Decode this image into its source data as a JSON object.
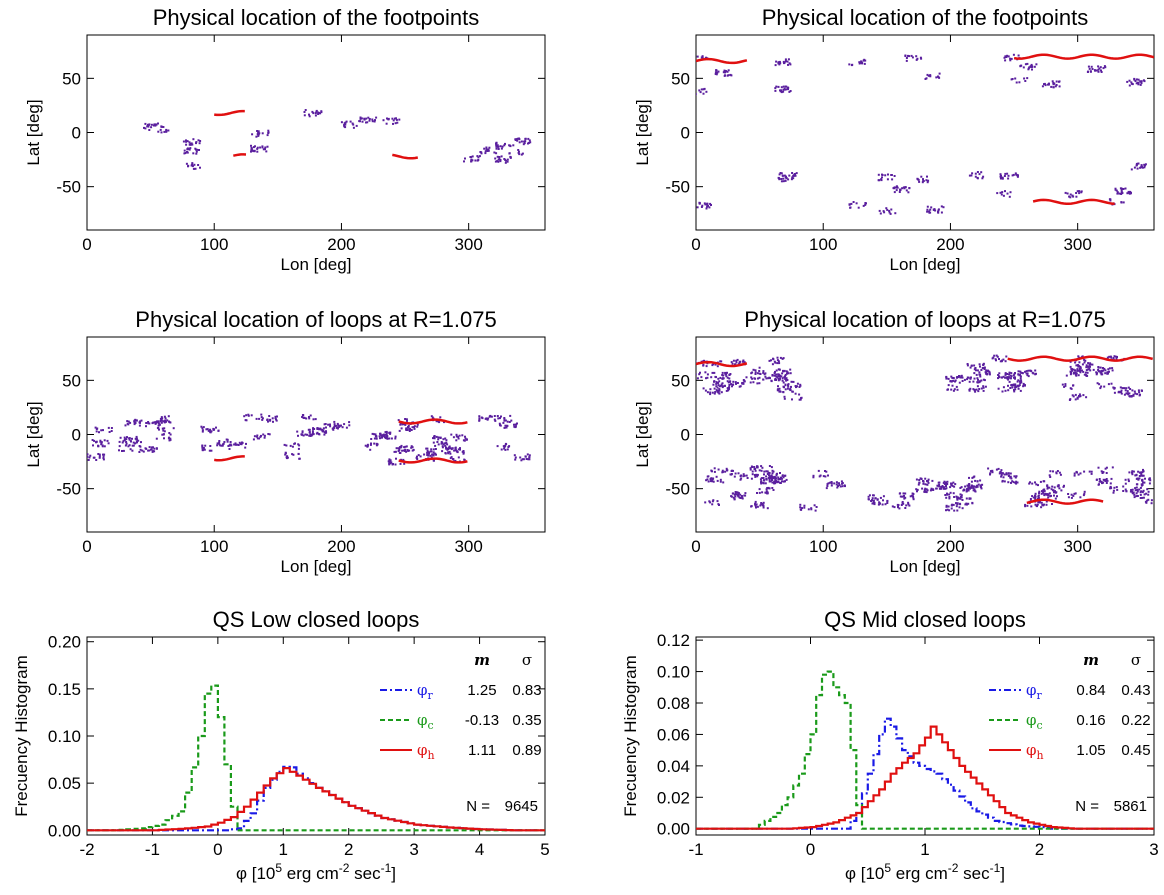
{
  "colors": {
    "footpoint": "#5a1f9e",
    "edge": "#e01010",
    "phi_r": "#1a1ae6",
    "phi_c": "#1a9a1a",
    "phi_h": "#e01010"
  },
  "chart_data": [
    {
      "type": "scatter",
      "title": "Physical location of the footpoints",
      "xlabel": "Lon [deg]",
      "ylabel": "Lat [deg]",
      "xlim": [
        0,
        360
      ],
      "ylim": [
        -90,
        90
      ],
      "xticks": [
        "0",
        "100",
        "200",
        "300"
      ],
      "yticks": [
        "-50",
        "0",
        "50"
      ],
      "regions": [
        {
          "lon": [
            5,
            120
          ],
          "lat": [
            -30,
            15
          ],
          "density": 70
        },
        {
          "lon": [
            120,
            240
          ],
          "lat": [
            -20,
            20
          ],
          "density": 80
        },
        {
          "lon": [
            240,
            355
          ],
          "lat": [
            -25,
            18
          ],
          "density": 90
        }
      ],
      "edges": [
        {
          "lon": [
            100,
            125
          ],
          "lat": 18
        },
        {
          "lon": [
            240,
            260
          ],
          "lat": -22
        },
        {
          "lon": [
            115,
            125
          ],
          "lat": -22
        }
      ]
    },
    {
      "type": "scatter",
      "title": "Physical location of the footpoints",
      "xlabel": "Lon [deg]",
      "ylabel": "Lat [deg]",
      "xlim": [
        0,
        360
      ],
      "ylim": [
        -90,
        90
      ],
      "xticks": [
        "0",
        "100",
        "200",
        "300"
      ],
      "yticks": [
        "-50",
        "0",
        "50"
      ],
      "regions": [
        {
          "lon": [
            0,
            130
          ],
          "lat": [
            35,
            70
          ],
          "density": 90
        },
        {
          "lon": [
            170,
            360
          ],
          "lat": [
            35,
            72
          ],
          "density": 130
        },
        {
          "lon": [
            0,
            240
          ],
          "lat": [
            -72,
            -30
          ],
          "density": 140
        },
        {
          "lon": [
            240,
            360
          ],
          "lat": [
            -68,
            -30
          ],
          "density": 90
        }
      ],
      "edges": [
        {
          "lon": [
            250,
            360
          ],
          "lat": 70
        },
        {
          "lon": [
            0,
            40
          ],
          "lat": 66
        },
        {
          "lon": [
            265,
            330
          ],
          "lat": -64
        }
      ]
    },
    {
      "type": "scatter",
      "title": "Physical location of loops at R=1.075",
      "xlabel": "Lon [deg]",
      "ylabel": "Lat [deg]",
      "xlim": [
        0,
        360
      ],
      "ylim": [
        -90,
        90
      ],
      "xticks": [
        "0",
        "100",
        "200",
        "300"
      ],
      "yticks": [
        "-50",
        "0",
        "50"
      ],
      "regions": [
        {
          "lon": [
            5,
            125
          ],
          "lat": [
            -25,
            15
          ],
          "density": 220
        },
        {
          "lon": [
            125,
            235
          ],
          "lat": [
            -20,
            18
          ],
          "density": 190
        },
        {
          "lon": [
            235,
            345
          ],
          "lat": [
            -25,
            18
          ],
          "density": 300
        }
      ],
      "edges": [
        {
          "lon": [
            245,
            300
          ],
          "lat": -24
        },
        {
          "lon": [
            245,
            300
          ],
          "lat": 12
        },
        {
          "lon": [
            100,
            125
          ],
          "lat": -22
        }
      ]
    },
    {
      "type": "scatter",
      "title": "Physical location of loops at R=1.075",
      "xlabel": "Lon [deg]",
      "ylabel": "Lat [deg]",
      "xlim": [
        0,
        360
      ],
      "ylim": [
        -90,
        90
      ],
      "xticks": [
        "0",
        "100",
        "200",
        "300"
      ],
      "yticks": [
        "-50",
        "0",
        "50"
      ],
      "regions": [
        {
          "lon": [
            0,
            100
          ],
          "lat": [
            35,
            70
          ],
          "density": 260
        },
        {
          "lon": [
            190,
            360
          ],
          "lat": [
            35,
            72
          ],
          "density": 380
        },
        {
          "lon": [
            5,
            110
          ],
          "lat": [
            -68,
            -30
          ],
          "density": 260
        },
        {
          "lon": [
            140,
            220
          ],
          "lat": [
            -70,
            -40
          ],
          "density": 200
        },
        {
          "lon": [
            230,
            360
          ],
          "lat": [
            -65,
            -30
          ],
          "density": 320
        }
      ],
      "edges": [
        {
          "lon": [
            245,
            360
          ],
          "lat": 70
        },
        {
          "lon": [
            0,
            40
          ],
          "lat": 65
        },
        {
          "lon": [
            260,
            320
          ],
          "lat": -62
        }
      ]
    },
    {
      "type": "line",
      "title": "QS Low closed loops",
      "xlabel_parts": {
        "pre": "φ [10",
        "sup1": "5",
        "mid": " erg cm",
        "sup2": "-2",
        "mid2": " sec",
        "sup3": "-1",
        "post": "]"
      },
      "ylabel": "Frecuency Histogram",
      "xlim": [
        -2,
        5
      ],
      "ylim": [
        -0.005,
        0.205
      ],
      "xticks": [
        "-2",
        "-1",
        "0",
        "1",
        "2",
        "3",
        "4",
        "5"
      ],
      "yticks": [
        "0.00",
        "0.05",
        "0.10",
        "0.15",
        "0.20"
      ],
      "bin_width": 0.1,
      "series": [
        {
          "name": "φ",
          "sub": "r",
          "m": "1.25",
          "sigma": "0.83",
          "color": "#1a1ae6",
          "style": "dashdot",
          "x": [
            0.1,
            0.3,
            0.5,
            0.7,
            0.9,
            1.05,
            1.2,
            1.5,
            2.0,
            2.5,
            3.0,
            3.5,
            4.0,
            4.5
          ],
          "y": [
            0.0,
            0.002,
            0.018,
            0.045,
            0.062,
            0.07,
            0.06,
            0.045,
            0.026,
            0.013,
            0.006,
            0.003,
            0.001,
            0.0
          ]
        },
        {
          "name": "φ",
          "sub": "c",
          "m": "-0.13",
          "sigma": "0.35",
          "color": "#1a9a1a",
          "style": "dashed",
          "x": [
            -1.6,
            -1.2,
            -0.9,
            -0.6,
            -0.45,
            -0.3,
            -0.2,
            -0.15,
            -0.08,
            0.0,
            0.1,
            0.2,
            0.3
          ],
          "y": [
            0.0,
            0.002,
            0.006,
            0.02,
            0.05,
            0.1,
            0.145,
            0.157,
            0.152,
            0.12,
            0.07,
            0.025,
            0.0
          ]
        },
        {
          "name": "φ",
          "sub": "h",
          "m": "1.11",
          "sigma": "0.89",
          "color": "#e01010",
          "style": "solid",
          "x": [
            -1.0,
            -0.5,
            -0.2,
            0.0,
            0.2,
            0.4,
            0.6,
            0.8,
            1.0,
            1.2,
            1.5,
            2.0,
            2.5,
            3.0,
            3.5,
            4.0,
            4.5
          ],
          "y": [
            0.0,
            0.002,
            0.004,
            0.008,
            0.014,
            0.025,
            0.04,
            0.055,
            0.066,
            0.058,
            0.045,
            0.026,
            0.013,
            0.006,
            0.003,
            0.001,
            0.0
          ]
        }
      ],
      "legend_header": {
        "m": "m",
        "sigma": "σ"
      },
      "n_label": "N =",
      "n_value": "9645"
    },
    {
      "type": "line",
      "title": "QS Mid closed loops",
      "xlabel_parts": {
        "pre": "φ [10",
        "sup1": "5",
        "mid": " erg cm",
        "sup2": "-2",
        "mid2": " sec",
        "sup3": "-1",
        "post": "]"
      },
      "ylabel": "Frecuency Histogram",
      "xlim": [
        -1,
        3
      ],
      "ylim": [
        -0.004,
        0.122
      ],
      "xticks": [
        "-1",
        "0",
        "1",
        "2",
        "3"
      ],
      "yticks": [
        "0.00",
        "0.02",
        "0.04",
        "0.06",
        "0.08",
        "0.10",
        "0.12"
      ],
      "bin_width": 0.05,
      "series": [
        {
          "name": "φ",
          "sub": "r",
          "m": "0.84",
          "sigma": "0.43",
          "color": "#1a1ae6",
          "style": "dashdot",
          "x": [
            0.3,
            0.4,
            0.5,
            0.6,
            0.65,
            0.7,
            0.8,
            0.9,
            1.0,
            1.1,
            1.2,
            1.4,
            1.6,
            1.8,
            2.0,
            2.1
          ],
          "y": [
            0.0,
            0.01,
            0.035,
            0.06,
            0.07,
            0.065,
            0.05,
            0.042,
            0.038,
            0.035,
            0.028,
            0.013,
            0.005,
            0.002,
            0.001,
            0.0
          ]
        },
        {
          "name": "φ",
          "sub": "c",
          "m": "0.16",
          "sigma": "0.22",
          "color": "#1a9a1a",
          "style": "dashed",
          "x": [
            -0.5,
            -0.3,
            -0.2,
            -0.1,
            0.0,
            0.05,
            0.1,
            0.15,
            0.2,
            0.25,
            0.3,
            0.35,
            0.4,
            0.45
          ],
          "y": [
            0.0,
            0.01,
            0.02,
            0.035,
            0.06,
            0.085,
            0.098,
            0.1,
            0.09,
            0.085,
            0.08,
            0.05,
            0.015,
            0.0
          ]
        },
        {
          "name": "φ",
          "sub": "h",
          "m": "1.05",
          "sigma": "0.45",
          "color": "#e01010",
          "style": "solid",
          "x": [
            -0.2,
            0.0,
            0.2,
            0.4,
            0.6,
            0.7,
            0.8,
            0.9,
            1.0,
            1.05,
            1.1,
            1.2,
            1.3,
            1.5,
            1.7,
            1.9,
            2.1,
            2.3
          ],
          "y": [
            0.0,
            0.001,
            0.004,
            0.01,
            0.025,
            0.035,
            0.042,
            0.048,
            0.058,
            0.065,
            0.06,
            0.05,
            0.04,
            0.025,
            0.01,
            0.004,
            0.001,
            0.0
          ]
        }
      ],
      "legend_header": {
        "m": "m",
        "sigma": "σ"
      },
      "n_label": "N =",
      "n_value": "5861"
    }
  ]
}
